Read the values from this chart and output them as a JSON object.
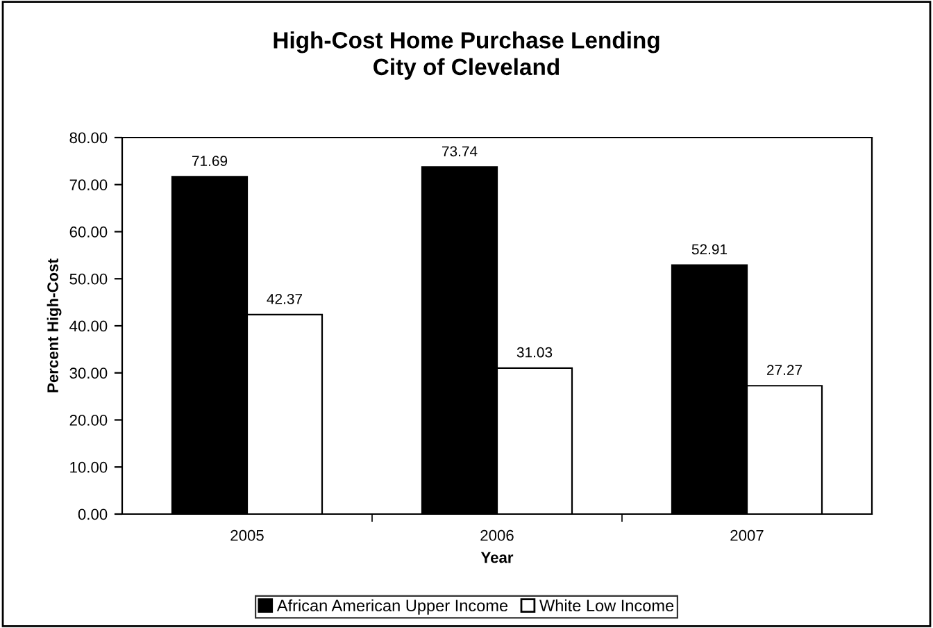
{
  "chart_data": {
    "type": "bar",
    "title": "High-Cost Home Purchase Lending\nCity of Cleveland",
    "xlabel": "Year",
    "ylabel": "Percent High-Cost",
    "categories": [
      "2005",
      "2006",
      "2007"
    ],
    "series": [
      {
        "name": "African American Upper Income",
        "color": "#000000",
        "values": [
          71.69,
          73.74,
          52.91
        ]
      },
      {
        "name": "White Low Income",
        "color": "#ffffff",
        "values": [
          42.37,
          31.03,
          27.27
        ]
      }
    ],
    "ylim": [
      0,
      80
    ],
    "yticks": [
      {
        "value": 0,
        "label": "0.00"
      },
      {
        "value": 10,
        "label": "10.00"
      },
      {
        "value": 20,
        "label": "20.00"
      },
      {
        "value": 30,
        "label": "30.00"
      },
      {
        "value": 40,
        "label": "40.00"
      },
      {
        "value": 50,
        "label": "50.00"
      },
      {
        "value": 60,
        "label": "60.00"
      },
      {
        "value": 70,
        "label": "70.00"
      },
      {
        "value": 80,
        "label": "80.00"
      }
    ],
    "data_labels": true,
    "grid": false,
    "legend": "bottom"
  }
}
